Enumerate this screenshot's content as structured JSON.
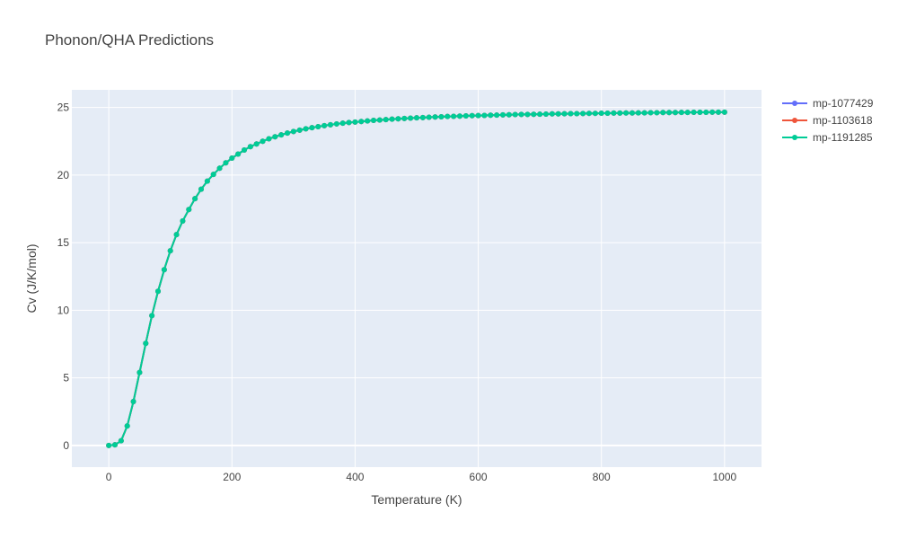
{
  "chart_data": {
    "type": "line",
    "title": "Phonon/QHA Predictions",
    "xlabel": "Temperature (K)",
    "ylabel": "Cv (J/K/mol)",
    "xlim": [
      -60,
      1060
    ],
    "ylim": [
      -1.6,
      26.3
    ],
    "xticks": [
      0,
      200,
      400,
      600,
      800,
      1000
    ],
    "yticks": [
      0,
      5,
      10,
      15,
      20,
      25
    ],
    "grid": true,
    "legend_position": "top-right",
    "x": [
      0,
      10,
      20,
      30,
      40,
      50,
      60,
      70,
      80,
      90,
      100,
      110,
      120,
      130,
      140,
      150,
      160,
      170,
      180,
      190,
      200,
      210,
      220,
      230,
      240,
      250,
      260,
      270,
      280,
      290,
      300,
      310,
      320,
      330,
      340,
      350,
      360,
      370,
      380,
      390,
      400,
      410,
      420,
      430,
      440,
      450,
      460,
      470,
      480,
      490,
      500,
      510,
      520,
      530,
      540,
      550,
      560,
      570,
      580,
      590,
      600,
      610,
      620,
      630,
      640,
      650,
      660,
      670,
      680,
      690,
      700,
      710,
      720,
      730,
      740,
      750,
      760,
      770,
      780,
      790,
      800,
      810,
      820,
      830,
      840,
      850,
      860,
      870,
      880,
      890,
      900,
      910,
      920,
      930,
      940,
      950,
      960,
      970,
      980,
      990,
      1000
    ],
    "series": [
      {
        "name": "mp-1077429",
        "color": "#636efa",
        "values": [
          0,
          0.05,
          0.35,
          1.45,
          3.25,
          5.4,
          7.55,
          9.6,
          11.4,
          13.0,
          14.4,
          15.6,
          16.6,
          17.45,
          18.25,
          18.95,
          19.55,
          20.05,
          20.5,
          20.9,
          21.25,
          21.55,
          21.85,
          22.1,
          22.3,
          22.5,
          22.68,
          22.83,
          22.97,
          23.1,
          23.22,
          23.32,
          23.42,
          23.5,
          23.58,
          23.65,
          23.72,
          23.78,
          23.83,
          23.88,
          23.92,
          23.96,
          24.0,
          24.04,
          24.07,
          24.1,
          24.13,
          24.16,
          24.18,
          24.21,
          24.23,
          24.25,
          24.27,
          24.29,
          24.31,
          24.33,
          24.34,
          24.36,
          24.37,
          24.39,
          24.4,
          24.41,
          24.42,
          24.43,
          24.45,
          24.46,
          24.47,
          24.48,
          24.48,
          24.49,
          24.5,
          24.51,
          24.52,
          24.52,
          24.53,
          24.54,
          24.54,
          24.55,
          24.56,
          24.56,
          24.57,
          24.57,
          24.58,
          24.58,
          24.59,
          24.59,
          24.6,
          24.6,
          24.61,
          24.61,
          24.62,
          24.62,
          24.62,
          24.63,
          24.63,
          24.64,
          24.64,
          24.64,
          24.65,
          24.65,
          24.65
        ]
      },
      {
        "name": "mp-1103618",
        "color": "#ef553b",
        "values": [
          0,
          0.05,
          0.35,
          1.45,
          3.25,
          5.4,
          7.55,
          9.6,
          11.4,
          13.0,
          14.4,
          15.6,
          16.6,
          17.45,
          18.25,
          18.95,
          19.55,
          20.05,
          20.5,
          20.9,
          21.25,
          21.55,
          21.85,
          22.1,
          22.3,
          22.5,
          22.68,
          22.83,
          22.97,
          23.1,
          23.22,
          23.32,
          23.42,
          23.5,
          23.58,
          23.65,
          23.72,
          23.78,
          23.83,
          23.88,
          23.92,
          23.96,
          24.0,
          24.04,
          24.07,
          24.1,
          24.13,
          24.16,
          24.18,
          24.21,
          24.23,
          24.25,
          24.27,
          24.29,
          24.31,
          24.33,
          24.34,
          24.36,
          24.37,
          24.39,
          24.4,
          24.41,
          24.42,
          24.43,
          24.45,
          24.46,
          24.47,
          24.48,
          24.48,
          24.49,
          24.5,
          24.51,
          24.52,
          24.52,
          24.53,
          24.54,
          24.54,
          24.55,
          24.56,
          24.56,
          24.57,
          24.57,
          24.58,
          24.58,
          24.59,
          24.59,
          24.6,
          24.6,
          24.61,
          24.61,
          24.62,
          24.62,
          24.62,
          24.63,
          24.63,
          24.64,
          24.64,
          24.64,
          24.65,
          24.65,
          24.65
        ]
      },
      {
        "name": "mp-1191285",
        "color": "#00cc96",
        "values": [
          0,
          0.05,
          0.35,
          1.45,
          3.25,
          5.4,
          7.55,
          9.6,
          11.4,
          13.0,
          14.4,
          15.6,
          16.6,
          17.45,
          18.25,
          18.95,
          19.55,
          20.05,
          20.5,
          20.9,
          21.25,
          21.55,
          21.85,
          22.1,
          22.3,
          22.5,
          22.68,
          22.83,
          22.97,
          23.1,
          23.22,
          23.32,
          23.42,
          23.5,
          23.58,
          23.65,
          23.72,
          23.78,
          23.83,
          23.88,
          23.92,
          23.96,
          24.0,
          24.04,
          24.07,
          24.1,
          24.13,
          24.16,
          24.18,
          24.21,
          24.23,
          24.25,
          24.27,
          24.29,
          24.31,
          24.33,
          24.34,
          24.36,
          24.37,
          24.39,
          24.4,
          24.41,
          24.42,
          24.43,
          24.45,
          24.46,
          24.47,
          24.48,
          24.48,
          24.49,
          24.5,
          24.51,
          24.52,
          24.52,
          24.53,
          24.54,
          24.54,
          24.55,
          24.56,
          24.56,
          24.57,
          24.57,
          24.58,
          24.58,
          24.59,
          24.59,
          24.6,
          24.6,
          24.61,
          24.61,
          24.62,
          24.62,
          24.62,
          24.63,
          24.63,
          24.64,
          24.64,
          24.64,
          24.65,
          24.65,
          24.65
        ]
      }
    ]
  },
  "colors": {
    "plot_background": "#e5ecf6",
    "grid": "#ffffff",
    "text": "#444444"
  }
}
